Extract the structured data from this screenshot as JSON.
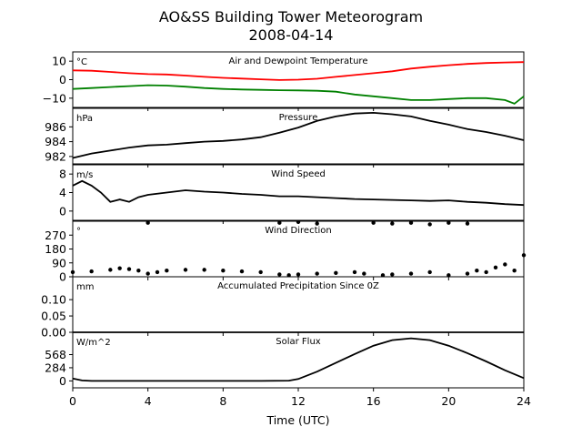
{
  "title_line1": "AO&SS Building Tower Meteorogram",
  "title_line2": "2008-04-14",
  "xlabel": "Time (UTC)",
  "xticks": [
    "0",
    "4",
    "8",
    "12",
    "16",
    "20",
    "24"
  ],
  "chart_data": [
    {
      "type": "line",
      "title": "Air and Dewpoint Temperature",
      "unit": "°C",
      "ylim": [
        -15,
        15
      ],
      "yticks": [
        10,
        0,
        -10
      ],
      "ytick_labels": [
        "10",
        "0",
        "−10"
      ],
      "series": [
        {
          "color": "#ff0000",
          "style": "line",
          "x": [
            0,
            1,
            2,
            3,
            4,
            5,
            6,
            7,
            8,
            9,
            10,
            11,
            12,
            13,
            14,
            15,
            16,
            17,
            18,
            19,
            20,
            21,
            22,
            23,
            24
          ],
          "y": [
            5,
            4.8,
            4.2,
            3.5,
            3,
            2.8,
            2.2,
            1.5,
            1,
            0.6,
            0.2,
            -0.2,
            0,
            0.5,
            1.5,
            2.5,
            3.5,
            4.5,
            6,
            7,
            7.8,
            8.5,
            9,
            9.3,
            9.5
          ]
        },
        {
          "color": "#008000",
          "style": "line",
          "x": [
            0,
            1,
            2,
            3,
            4,
            5,
            6,
            7,
            8,
            9,
            10,
            11,
            12,
            13,
            14,
            15,
            16,
            17,
            18,
            19,
            20,
            21,
            22,
            23,
            23.5,
            24
          ],
          "y": [
            -5,
            -4.5,
            -4,
            -3.5,
            -3,
            -3.2,
            -3.8,
            -4.5,
            -5,
            -5.3,
            -5.5,
            -5.7,
            -5.8,
            -6,
            -6.5,
            -8,
            -9,
            -10,
            -11,
            -11,
            -10.5,
            -10,
            -10,
            -11,
            -13,
            -9
          ]
        }
      ]
    },
    {
      "type": "line",
      "title": "Pressure",
      "unit": "hPa",
      "ylim": [
        981,
        988.5
      ],
      "yticks": [
        986,
        984,
        982
      ],
      "ytick_labels": [
        "986",
        "984",
        "982"
      ],
      "series": [
        {
          "color": "#000000",
          "style": "line",
          "x": [
            0,
            1,
            2,
            3,
            4,
            5,
            6,
            7,
            8,
            9,
            10,
            11,
            12,
            13,
            14,
            15,
            16,
            17,
            18,
            19,
            20,
            21,
            22,
            23,
            24
          ],
          "y": [
            981.8,
            982.4,
            982.8,
            983.2,
            983.5,
            983.6,
            983.8,
            984,
            984.1,
            984.3,
            984.6,
            985.2,
            985.9,
            986.8,
            987.4,
            987.8,
            987.9,
            987.7,
            987.4,
            986.8,
            986.3,
            985.7,
            985.3,
            984.8,
            984.2
          ]
        }
      ]
    },
    {
      "type": "line",
      "title": "Wind Speed",
      "unit": "m/s",
      "ylim": [
        -2,
        10
      ],
      "yticks": [
        8,
        4,
        0
      ],
      "ytick_labels": [
        "8",
        "4",
        "0"
      ],
      "series": [
        {
          "color": "#000000",
          "style": "line",
          "x": [
            0,
            0.5,
            1,
            1.5,
            2,
            2.5,
            3,
            3.5,
            4,
            5,
            6,
            7,
            8,
            9,
            10,
            11,
            12,
            13,
            14,
            15,
            16,
            17,
            18,
            19,
            20,
            21,
            22,
            23,
            24
          ],
          "y": [
            5.5,
            6.5,
            5.5,
            4,
            2,
            2.5,
            2,
            3,
            3.5,
            4,
            4.5,
            4.2,
            4,
            3.7,
            3.5,
            3.2,
            3.2,
            3,
            2.8,
            2.6,
            2.5,
            2.4,
            2.3,
            2.2,
            2.3,
            2,
            1.8,
            1.5,
            1.3
          ]
        }
      ]
    },
    {
      "type": "scatter",
      "title": "Wind Direction",
      "unit": "°",
      "ylim": [
        0,
        360
      ],
      "yticks": [
        270,
        180,
        90,
        0
      ],
      "ytick_labels": [
        "270",
        "180",
        "90",
        "0"
      ],
      "series": [
        {
          "color": "#000000",
          "style": "points",
          "x": [
            0,
            1,
            2,
            2.5,
            3,
            3.5,
            4,
            4.5,
            5,
            6,
            7,
            8,
            9,
            10,
            11,
            11.5,
            12,
            13,
            14,
            15,
            15.5,
            16.5,
            17,
            18,
            19,
            20,
            21,
            21.5,
            22,
            22.5,
            23,
            23.5,
            24,
            4,
            11,
            12,
            13,
            16,
            17,
            18,
            19,
            20,
            21
          ],
          "y": [
            30,
            35,
            45,
            55,
            50,
            40,
            20,
            30,
            40,
            45,
            45,
            40,
            35,
            30,
            15,
            10,
            15,
            20,
            25,
            30,
            20,
            10,
            15,
            20,
            30,
            10,
            20,
            40,
            30,
            60,
            80,
            40,
            140,
            350,
            350,
            355,
            345,
            350,
            345,
            350,
            340,
            350,
            345
          ]
        }
      ]
    },
    {
      "type": "line",
      "title": "Accumulated Precipitation Since 0Z",
      "unit": "mm",
      "ylim": [
        0,
        0.17
      ],
      "yticks": [
        0.1,
        0.05,
        0.0
      ],
      "ytick_labels": [
        "0.10",
        "0.05",
        "0.00"
      ],
      "series": [
        {
          "color": "#000000",
          "style": "line",
          "x": [
            0,
            24
          ],
          "y": [
            0,
            0
          ]
        }
      ]
    },
    {
      "type": "line",
      "title": "Solar Flux",
      "unit": "W/m^2",
      "ylim": [
        -150,
        1050
      ],
      "yticks": [
        568,
        284,
        0
      ],
      "ytick_labels": [
        "568",
        "284",
        "0"
      ],
      "series": [
        {
          "color": "#000000",
          "style": "line",
          "x": [
            0,
            0.5,
            1,
            2,
            4,
            6,
            8,
            10,
            11.5,
            12,
            13,
            14,
            15,
            16,
            17,
            18,
            19,
            20,
            21,
            22,
            23,
            24
          ],
          "y": [
            50,
            10,
            0,
            0,
            0,
            0,
            0,
            0,
            5,
            40,
            200,
            390,
            580,
            760,
            880,
            920,
            880,
            760,
            600,
            420,
            230,
            60
          ]
        }
      ]
    }
  ]
}
